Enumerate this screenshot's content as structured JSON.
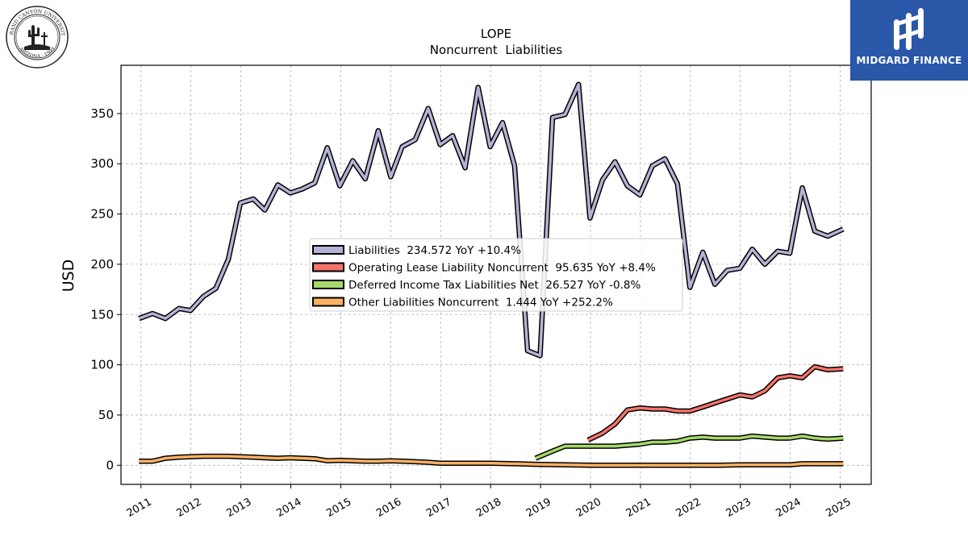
{
  "logos": {
    "left_seal_text": "GRAND CANYON UNIVERSITY · ARIZONA 1949",
    "right_brand": "MIDGARD FINANCE",
    "right_brand_color": "#2a57a8"
  },
  "chart_data": {
    "type": "line",
    "title": "LOPE",
    "subtitle": "Noncurrent  Liabilities",
    "xlabel": "",
    "ylabel": "USD",
    "xlim": [
      2010.6,
      2025.62
    ],
    "ylim": [
      -19,
      398
    ],
    "x_ticks": [
      "2011",
      "2012",
      "2013",
      "2014",
      "2015",
      "2016",
      "2017",
      "2018",
      "2019",
      "2020",
      "2021",
      "2022",
      "2023",
      "2024",
      "2025"
    ],
    "y_ticks": [
      0,
      50,
      100,
      150,
      200,
      250,
      300,
      350
    ],
    "grid": true,
    "legend_position": "center",
    "series": [
      {
        "name": "Liabilities",
        "legend": "Liabilities  234.572 YoY +10.4%",
        "color": "#b3b3d6",
        "points": [
          [
            2010.96,
            146
          ],
          [
            2011.23,
            151
          ],
          [
            2011.49,
            146
          ],
          [
            2011.76,
            156
          ],
          [
            2011.99,
            154
          ],
          [
            2012.25,
            168
          ],
          [
            2012.5,
            176
          ],
          [
            2012.75,
            205
          ],
          [
            2012.99,
            261
          ],
          [
            2013.25,
            265
          ],
          [
            2013.48,
            254
          ],
          [
            2013.74,
            279
          ],
          [
            2013.99,
            271
          ],
          [
            2014.23,
            275
          ],
          [
            2014.48,
            281
          ],
          [
            2014.73,
            316
          ],
          [
            2014.98,
            278
          ],
          [
            2015.24,
            303
          ],
          [
            2015.49,
            285
          ],
          [
            2015.75,
            333
          ],
          [
            2016.0,
            287
          ],
          [
            2016.23,
            317
          ],
          [
            2016.49,
            324
          ],
          [
            2016.75,
            355
          ],
          [
            2016.99,
            319
          ],
          [
            2017.24,
            328
          ],
          [
            2017.49,
            296
          ],
          [
            2017.75,
            376
          ],
          [
            2017.99,
            317
          ],
          [
            2018.24,
            341
          ],
          [
            2018.48,
            298
          ],
          [
            2018.74,
            114
          ],
          [
            2018.99,
            109
          ],
          [
            2019.24,
            346
          ],
          [
            2019.49,
            349
          ],
          [
            2019.76,
            379
          ],
          [
            2019.99,
            246
          ],
          [
            2020.24,
            284
          ],
          [
            2020.49,
            302
          ],
          [
            2020.74,
            278
          ],
          [
            2020.99,
            269
          ],
          [
            2021.24,
            298
          ],
          [
            2021.49,
            305
          ],
          [
            2021.74,
            280
          ],
          [
            2021.99,
            177
          ],
          [
            2022.25,
            212
          ],
          [
            2022.49,
            180
          ],
          [
            2022.74,
            194
          ],
          [
            2022.99,
            196
          ],
          [
            2023.24,
            215
          ],
          [
            2023.49,
            200
          ],
          [
            2023.75,
            213
          ],
          [
            2023.99,
            211
          ],
          [
            2024.24,
            276
          ],
          [
            2024.49,
            233
          ],
          [
            2024.75,
            228
          ],
          [
            2025.06,
            235
          ]
        ]
      },
      {
        "name": "Operating Lease Liability Noncurrent",
        "legend": "Operating Lease Liability Noncurrent  95.635 YoY +8.4%",
        "color": "#f4736b",
        "points": [
          [
            2019.95,
            25
          ],
          [
            2020.24,
            32
          ],
          [
            2020.49,
            41
          ],
          [
            2020.74,
            55
          ],
          [
            2020.99,
            57
          ],
          [
            2021.24,
            56
          ],
          [
            2021.49,
            56
          ],
          [
            2021.74,
            54
          ],
          [
            2021.99,
            54
          ],
          [
            2022.25,
            58
          ],
          [
            2022.49,
            62
          ],
          [
            2022.74,
            66
          ],
          [
            2022.99,
            70
          ],
          [
            2023.24,
            68
          ],
          [
            2023.49,
            74
          ],
          [
            2023.75,
            87
          ],
          [
            2023.99,
            89
          ],
          [
            2024.24,
            87
          ],
          [
            2024.49,
            98
          ],
          [
            2024.75,
            95
          ],
          [
            2025.06,
            96
          ]
        ]
      },
      {
        "name": "Deferred Income Tax Liabilities Net",
        "legend": "Deferred Income Tax Liabilities Net  26.527 YoY -0.8%",
        "color": "#a6d96a",
        "points": [
          [
            2018.9,
            7
          ],
          [
            2019.24,
            14
          ],
          [
            2019.49,
            19
          ],
          [
            2019.76,
            19
          ],
          [
            2019.99,
            19
          ],
          [
            2020.24,
            19
          ],
          [
            2020.49,
            19
          ],
          [
            2020.74,
            20
          ],
          [
            2020.99,
            21
          ],
          [
            2021.24,
            23
          ],
          [
            2021.49,
            23
          ],
          [
            2021.74,
            24
          ],
          [
            2021.99,
            27
          ],
          [
            2022.25,
            28
          ],
          [
            2022.49,
            27
          ],
          [
            2022.74,
            27
          ],
          [
            2022.99,
            27
          ],
          [
            2023.24,
            29
          ],
          [
            2023.49,
            28
          ],
          [
            2023.75,
            27
          ],
          [
            2023.99,
            27
          ],
          [
            2024.24,
            29
          ],
          [
            2024.49,
            27
          ],
          [
            2024.75,
            26
          ],
          [
            2025.06,
            27
          ]
        ]
      },
      {
        "name": "Other Liabilities Noncurrent",
        "legend": "Other Liabilities Noncurrent  1.444 YoY +252.2%",
        "color": "#fdb163",
        "points": [
          [
            2010.96,
            4
          ],
          [
            2011.23,
            4
          ],
          [
            2011.49,
            7
          ],
          [
            2011.76,
            8
          ],
          [
            2011.99,
            8.5
          ],
          [
            2012.25,
            9
          ],
          [
            2012.5,
            9
          ],
          [
            2012.75,
            9
          ],
          [
            2012.99,
            8.5
          ],
          [
            2013.25,
            8
          ],
          [
            2013.48,
            7.5
          ],
          [
            2013.74,
            7
          ],
          [
            2013.99,
            7.5
          ],
          [
            2014.23,
            7
          ],
          [
            2014.48,
            6.5
          ],
          [
            2014.73,
            4.5
          ],
          [
            2014.98,
            5
          ],
          [
            2015.24,
            4.5
          ],
          [
            2015.49,
            4
          ],
          [
            2015.75,
            4
          ],
          [
            2016.0,
            4.5
          ],
          [
            2016.23,
            4
          ],
          [
            2016.49,
            3.5
          ],
          [
            2016.75,
            3
          ],
          [
            2016.99,
            2
          ],
          [
            2017.5,
            2
          ],
          [
            2018.0,
            2
          ],
          [
            2018.5,
            1.5
          ],
          [
            2018.9,
            1
          ],
          [
            2019.5,
            0.5
          ],
          [
            2020.0,
            0
          ],
          [
            2021.0,
            0
          ],
          [
            2022.0,
            0
          ],
          [
            2022.6,
            0
          ],
          [
            2023.0,
            0.5
          ],
          [
            2023.5,
            0.5
          ],
          [
            2023.99,
            0.5
          ],
          [
            2024.24,
            1.5
          ],
          [
            2024.75,
            1.5
          ],
          [
            2025.06,
            1.5
          ]
        ]
      }
    ]
  }
}
